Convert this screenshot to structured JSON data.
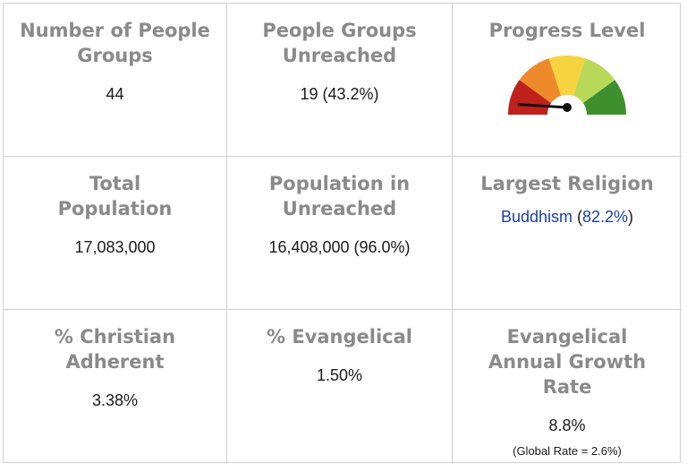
{
  "stats": {
    "people_groups": {
      "label": "Number of People Groups",
      "value": "44"
    },
    "unreached_groups": {
      "label": "People Groups Unreached",
      "value": "19 (43.2%)"
    },
    "progress": {
      "label": "Progress Level",
      "gauge_level": 0.02,
      "segment_colors": [
        "#c0211b",
        "#ef8a2c",
        "#f7d33f",
        "#b8d85a",
        "#3e8f2e"
      ],
      "needle_color": "#111111"
    },
    "total_population": {
      "label": "Total Population",
      "value": "17,083,000"
    },
    "population_unreached": {
      "label": "Population in Unreached",
      "value": "16,408,000 (96.0%)"
    },
    "largest_religion": {
      "label": "Largest Religion",
      "name": "Buddhism",
      "percent": "82.2%",
      "open_paren": "(",
      "close_paren": ")",
      "link_color": "#1c3fa6"
    },
    "christian_adherent": {
      "label": "% Christian Adherent",
      "value": "3.38%"
    },
    "evangelical": {
      "label": "% Evangelical",
      "value": "1.50%"
    },
    "growth_rate": {
      "label": "Evangelical Annual Growth Rate",
      "value": "8.8%",
      "note": "(Global Rate = 2.6%)"
    }
  }
}
